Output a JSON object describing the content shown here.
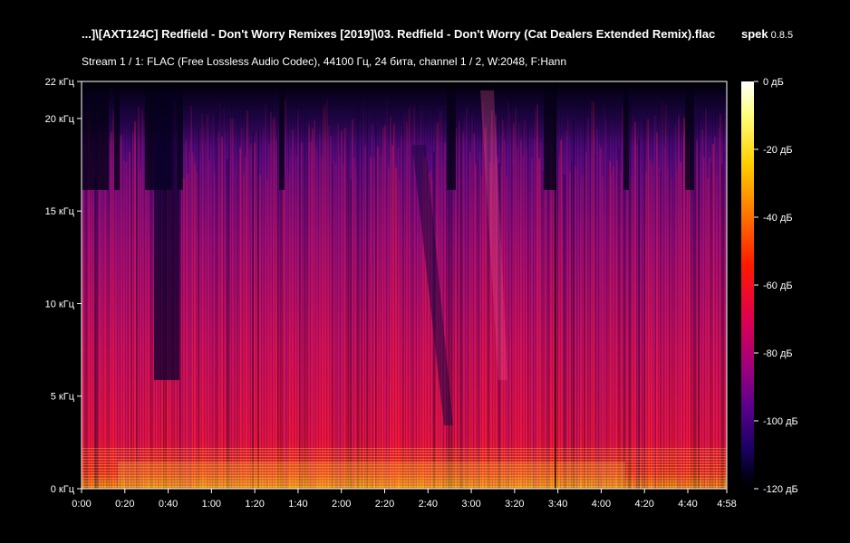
{
  "window": {
    "file_title": "...]\\[AXT124C] Redfield - Don't Worry Remixes [2019]\\03. Redfield - Don't Worry (Cat Dealers Extended Remix).flac",
    "app_name": "spek",
    "app_version": "0.8.5",
    "stream_info": "Stream 1 / 1: FLAC (Free Lossless Audio Codec), 44100 Гц, 24 бита, channel 1 / 2, W:2048, F:Hann"
  },
  "spectrogram": {
    "frequency_axis": {
      "ticks": [
        "0 кГц",
        "5 кГц",
        "10 кГц",
        "15 кГц",
        "20 кГц",
        "22 кГц"
      ],
      "values_khz": [
        0,
        5,
        10,
        15,
        20,
        22
      ]
    },
    "time_axis": {
      "ticks": [
        "0:00",
        "0:20",
        "0:40",
        "1:00",
        "1:20",
        "1:40",
        "2:00",
        "2:20",
        "2:40",
        "3:00",
        "3:20",
        "3:40",
        "4:00",
        "4:20",
        "4:40",
        "4:58"
      ],
      "values_s": [
        0,
        20,
        40,
        60,
        80,
        100,
        120,
        140,
        160,
        180,
        200,
        220,
        240,
        260,
        280,
        298
      ]
    },
    "colors": {
      "background": "#000000",
      "text": "#ffffff",
      "axis": "#ffffff"
    }
  },
  "legend": {
    "ticks": [
      "0 дБ",
      "-20 дБ",
      "-40 дБ",
      "-60 дБ",
      "-80 дБ",
      "-100 дБ",
      "-120 дБ"
    ],
    "values_db": [
      0,
      -20,
      -40,
      -60,
      -80,
      -100,
      -120
    ],
    "gradient_colors": [
      "#ffffff",
      "#ffff66",
      "#ffcc00",
      "#ff6600",
      "#ff1a00",
      "#e6004d",
      "#a3007a",
      "#5c008c",
      "#1e0066",
      "#000020",
      "#000000"
    ]
  }
}
